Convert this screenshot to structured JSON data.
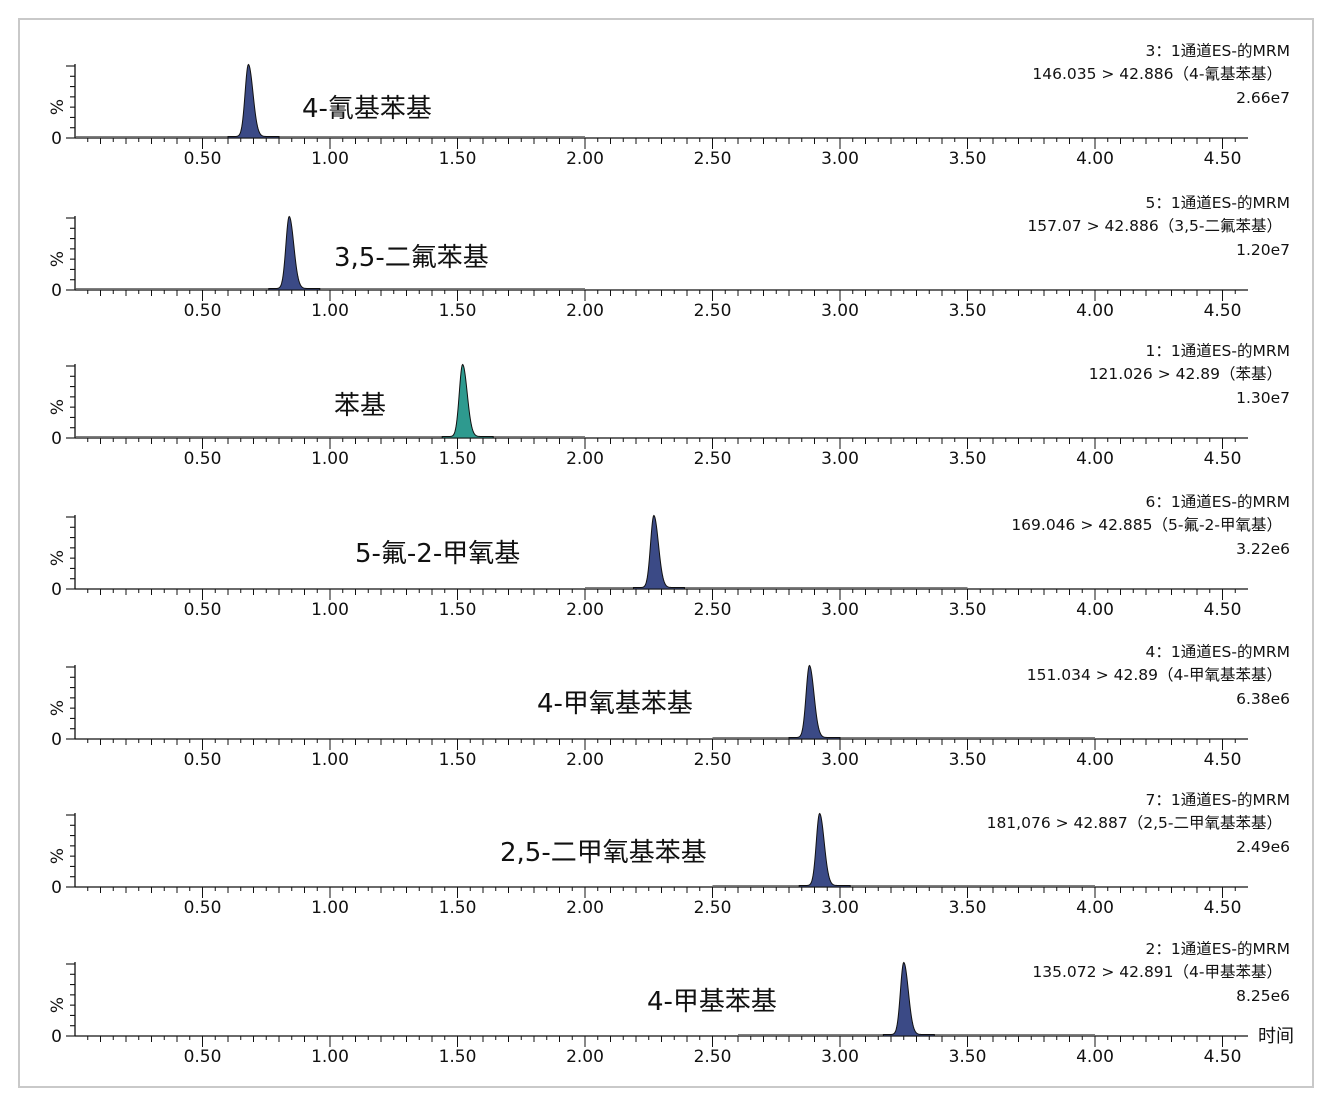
{
  "chart_data": {
    "type": "line",
    "x_unit_label": "时间",
    "y_axis_label": "%",
    "y_zero_label": "0",
    "xlim": [
      0.0,
      4.6
    ],
    "x_ticks": [
      "0.50",
      "1.00",
      "1.50",
      "2.00",
      "2.50",
      "3.00",
      "3.50",
      "4.00",
      "4.50"
    ],
    "x_tick_values": [
      0.5,
      1.0,
      1.5,
      2.0,
      2.5,
      3.0,
      3.5,
      4.0,
      4.5
    ],
    "fill_color": "#3b4a86",
    "highlight_color": "#2e9a8f",
    "panels": [
      {
        "channel": "3：1通道ES-的MRM",
        "transition": "146.035 > 42.886（4-氰基苯基）",
        "intensity": "2.66e7",
        "compound": "4-氰基苯基",
        "peak_rt": 0.68,
        "baseline_range": [
          0.0,
          2.0
        ],
        "color": "#3b4a86"
      },
      {
        "channel": "5：1通道ES-的MRM",
        "transition": "157.07 > 42.886（3,5-二氟苯基）",
        "intensity": "1.20e7",
        "compound": "3,5-二氟苯基",
        "peak_rt": 0.84,
        "baseline_range": [
          0.0,
          2.0
        ],
        "color": "#3b4a86"
      },
      {
        "channel": "1：1通道ES-的MRM",
        "transition": "121.026 > 42.89（苯基）",
        "intensity": "1.30e7",
        "compound": "苯基",
        "peak_rt": 1.52,
        "baseline_range": [
          0.0,
          2.0
        ],
        "color": "#2e9a8f"
      },
      {
        "channel": "6：1通道ES-的MRM",
        "transition": "169.046 > 42.885（5-氟-2-甲氧基）",
        "intensity": "3.22e6",
        "compound": "5-氟-2-甲氧基",
        "peak_rt": 2.27,
        "baseline_range": [
          2.0,
          3.5
        ],
        "color": "#3b4a86"
      },
      {
        "channel": "4：1通道ES-的MRM",
        "transition": "151.034 > 42.89（4-甲氧基苯基）",
        "intensity": "6.38e6",
        "compound": "4-甲氧基苯基",
        "peak_rt": 2.88,
        "baseline_range": [
          2.5,
          4.0
        ],
        "color": "#3b4a86"
      },
      {
        "channel": "7：1通道ES-的MRM",
        "transition": "181,076 > 42.887（2,5-二甲氧基苯基）",
        "intensity": "2.49e6",
        "compound": "2,5-二甲氧基苯基",
        "peak_rt": 2.92,
        "baseline_range": [
          2.5,
          4.0
        ],
        "color": "#3b4a86"
      },
      {
        "channel": "2：1通道ES-的MRM",
        "transition": "135.072 > 42.891（4-甲基苯基）",
        "intensity": "8.25e6",
        "compound": "4-甲基苯基",
        "peak_rt": 3.25,
        "baseline_range": [
          2.6,
          4.0
        ],
        "color": "#3b4a86"
      }
    ]
  }
}
